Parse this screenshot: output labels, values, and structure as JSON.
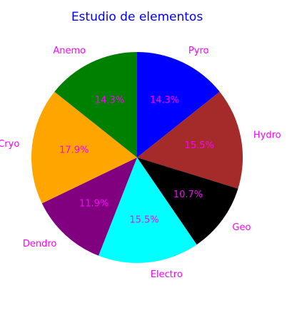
{
  "chart_data": {
    "type": "pie",
    "title": "Estudio de elementos",
    "title_color": "#0000ff",
    "label_color": "#ff00ff",
    "start_angle_deg": 90,
    "direction": "clockwise",
    "slices": [
      {
        "label": "Pyro",
        "percent_label": "14.3%",
        "value": 14.3,
        "color": "#0000ff"
      },
      {
        "label": "Hydro",
        "percent_label": "15.5%",
        "value": 15.5,
        "color": "#a52a2a"
      },
      {
        "label": "Geo",
        "percent_label": "10.7%",
        "value": 10.7,
        "color": "#000000"
      },
      {
        "label": "Electro",
        "percent_label": "15.5%",
        "value": 15.5,
        "color": "#00ffff"
      },
      {
        "label": "Dendro",
        "percent_label": "11.9%",
        "value": 11.9,
        "color": "#800080"
      },
      {
        "label": "Cryo",
        "percent_label": "17.9%",
        "value": 17.9,
        "color": "#ffa500"
      },
      {
        "label": "Anemo",
        "percent_label": "14.3%",
        "value": 14.3,
        "color": "#008000"
      }
    ]
  }
}
